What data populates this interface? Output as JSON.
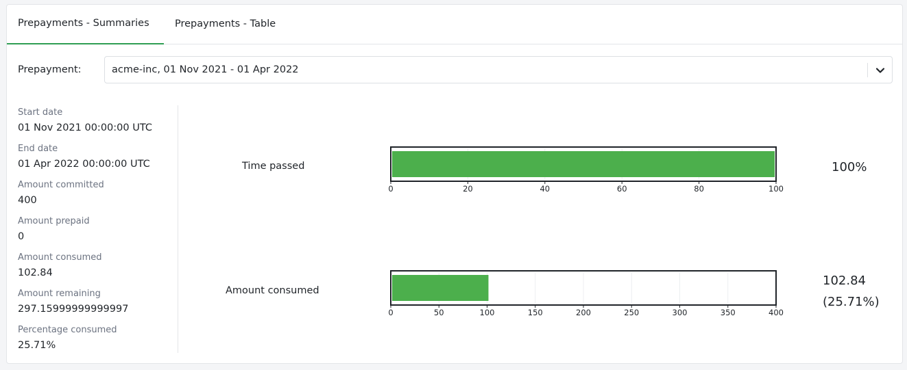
{
  "tabs": [
    {
      "label": "Prepayments - Summaries",
      "active": true
    },
    {
      "label": "Prepayments - Table",
      "active": false
    }
  ],
  "prepayment": {
    "label": "Prepayment:",
    "selected": "acme-inc, 01 Nov 2021 - 01 Apr 2022",
    "dropdown_icon": "chevron-down-icon"
  },
  "summary": {
    "start_date": {
      "label": "Start date",
      "value": "01 Nov 2021 00:00:00 UTC"
    },
    "end_date": {
      "label": "End date",
      "value": "01 Apr 2022 00:00:00 UTC"
    },
    "amount_committed": {
      "label": "Amount committed",
      "value": "400"
    },
    "amount_prepaid": {
      "label": "Amount prepaid",
      "value": "0"
    },
    "amount_consumed": {
      "label": "Amount consumed",
      "value": "102.84"
    },
    "amount_remaining": {
      "label": "Amount remaining",
      "value": "297.15999999999997"
    },
    "percentage_consumed": {
      "label": "Percentage consumed",
      "value": "25.71%"
    }
  },
  "colors": {
    "accent": "#2f9e53",
    "bar_fill": "#4caf4c"
  },
  "chart_data": [
    {
      "type": "bar",
      "orientation": "horizontal",
      "label": "Time passed",
      "value": 100,
      "xlim": [
        0,
        100
      ],
      "ticks": [
        0,
        20,
        40,
        60,
        80,
        100
      ],
      "display_value": "100%"
    },
    {
      "type": "bar",
      "orientation": "horizontal",
      "label": "Amount consumed",
      "value": 102.84,
      "xlim": [
        0,
        400
      ],
      "ticks": [
        0,
        50,
        100,
        150,
        200,
        250,
        300,
        350,
        400
      ],
      "display_value": [
        "102.84",
        "(25.71%)"
      ]
    }
  ]
}
